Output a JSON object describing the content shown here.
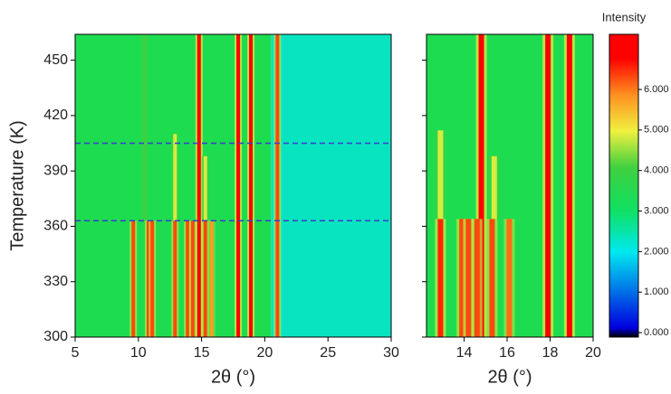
{
  "chart_data": [
    {
      "type": "heatmap",
      "xlabel": "2θ (°)",
      "ylabel": "Temperature (K)",
      "xlim": [
        5,
        30
      ],
      "xticks": [
        5,
        10,
        15,
        20,
        25,
        30
      ],
      "ylim": [
        300,
        464
      ],
      "yticks": [
        300,
        330,
        360,
        390,
        420,
        450
      ],
      "bands": [
        {
          "x0": 5,
          "x1": 20.5,
          "value": 3000
        },
        {
          "x0": 20.5,
          "x1": 30,
          "value": 2300
        }
      ],
      "peaks": [
        {
          "x": 14.8,
          "t0": 300,
          "t1": 464,
          "value": 6500
        },
        {
          "x": 17.9,
          "t0": 300,
          "t1": 464,
          "value": 6500
        },
        {
          "x": 18.9,
          "t0": 300,
          "t1": 464,
          "value": 6500
        },
        {
          "x": 21.0,
          "t0": 300,
          "t1": 464,
          "value": 6000
        },
        {
          "x": 10.5,
          "t0": 363,
          "t1": 464,
          "value": 3900
        },
        {
          "x": 9.6,
          "t0": 300,
          "t1": 363,
          "value": 6000
        },
        {
          "x": 10.8,
          "t0": 300,
          "t1": 363,
          "value": 6000
        },
        {
          "x": 11.1,
          "t0": 300,
          "t1": 363,
          "value": 6000
        },
        {
          "x": 12.9,
          "t0": 300,
          "t1": 363,
          "value": 6000
        },
        {
          "x": 13.9,
          "t0": 300,
          "t1": 363,
          "value": 6000
        },
        {
          "x": 14.3,
          "t0": 300,
          "t1": 363,
          "value": 6000
        },
        {
          "x": 15.3,
          "t0": 300,
          "t1": 363,
          "value": 6000
        },
        {
          "x": 15.8,
          "t0": 300,
          "t1": 363,
          "value": 5500
        },
        {
          "x": 12.9,
          "t0": 363,
          "t1": 410,
          "value": 4600
        },
        {
          "x": 15.3,
          "t0": 363,
          "t1": 398,
          "value": 4600
        }
      ],
      "hlines": [
        363,
        405
      ],
      "hline_color": "#3b3bd0"
    },
    {
      "type": "heatmap",
      "xlabel": "2θ (°)",
      "xlim": [
        12.25,
        20
      ],
      "xticks": [
        14,
        16,
        18,
        20
      ],
      "ylim": [
        300,
        464
      ],
      "yticks": [
        300,
        330,
        360,
        390,
        420,
        450
      ],
      "bands": [
        {
          "x0": 12.25,
          "x1": 20,
          "value": 3000
        }
      ],
      "peaks": [
        {
          "x": 14.8,
          "t0": 300,
          "t1": 464,
          "value": 6500
        },
        {
          "x": 17.9,
          "t0": 300,
          "t1": 464,
          "value": 6500
        },
        {
          "x": 18.9,
          "t0": 300,
          "t1": 464,
          "value": 6500
        },
        {
          "x": 12.9,
          "t0": 300,
          "t1": 364,
          "value": 6200
        },
        {
          "x": 13.9,
          "t0": 300,
          "t1": 364,
          "value": 6000
        },
        {
          "x": 14.2,
          "t0": 300,
          "t1": 364,
          "value": 6000
        },
        {
          "x": 14.6,
          "t0": 300,
          "t1": 364,
          "value": 6000
        },
        {
          "x": 15.3,
          "t0": 300,
          "t1": 364,
          "value": 6000
        },
        {
          "x": 16.1,
          "t0": 300,
          "t1": 364,
          "value": 5800
        },
        {
          "x": 12.9,
          "t0": 364,
          "t1": 412,
          "value": 4600
        },
        {
          "x": 15.4,
          "t0": 364,
          "t1": 398,
          "value": 4600
        }
      ],
      "colorbar_title": "Intensity",
      "zlim": [
        -110,
        7360
      ],
      "zticks": [
        {
          "value": 0,
          "label": "0.000"
        },
        {
          "value": 1000,
          "label": "1.000"
        },
        {
          "value": 2000,
          "label": "2.000"
        },
        {
          "value": 3000,
          "label": "3.000"
        },
        {
          "value": 4000,
          "label": "4.000"
        },
        {
          "value": 5000,
          "label": "5.000"
        },
        {
          "value": 6000,
          "label": "6.000"
        }
      ]
    }
  ]
}
